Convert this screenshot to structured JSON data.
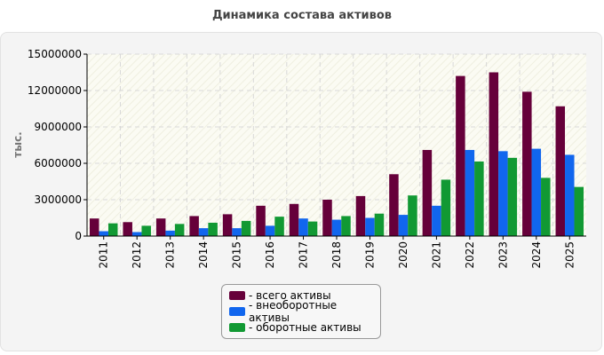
{
  "chart_data": {
    "type": "bar",
    "title": "Динамика состава активов",
    "ylabel": "тыс.",
    "xlabel": "",
    "ylim": [
      0,
      15000000
    ],
    "yticks": [
      0,
      3000000,
      6000000,
      9000000,
      12000000,
      15000000
    ],
    "grid": true,
    "legend_position": "bottom",
    "categories": [
      "2011",
      "2012",
      "2013",
      "2014",
      "2015",
      "2016",
      "2017",
      "2018",
      "2019",
      "2020",
      "2021",
      "2022",
      "2023",
      "2024",
      "2025"
    ],
    "series": [
      {
        "name": "- всего активы",
        "color": "#66003a",
        "values": [
          1450000,
          1150000,
          1450000,
          1650000,
          1800000,
          2500000,
          2650000,
          3000000,
          3300000,
          5100000,
          7100000,
          13200000,
          13500000,
          11900000,
          10700000
        ]
      },
      {
        "name": "- внеоборотные активы",
        "color": "#1166ee",
        "values": [
          400000,
          330000,
          450000,
          650000,
          650000,
          850000,
          1450000,
          1350000,
          1500000,
          1750000,
          2500000,
          7100000,
          7000000,
          7200000,
          6700000
        ]
      },
      {
        "name": "- оборотные активы",
        "color": "#119933",
        "values": [
          1050000,
          850000,
          1000000,
          1100000,
          1250000,
          1600000,
          1200000,
          1650000,
          1850000,
          3350000,
          4650000,
          6150000,
          6450000,
          4800000,
          4050000
        ]
      }
    ]
  }
}
